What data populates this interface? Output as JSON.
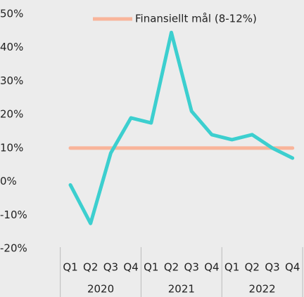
{
  "chart_data": {
    "type": "line",
    "categories": [
      "Q1",
      "Q2",
      "Q3",
      "Q4",
      "Q1",
      "Q2",
      "Q3",
      "Q4",
      "Q1",
      "Q2",
      "Q3",
      "Q4"
    ],
    "category_groups": [
      "2020",
      "2021",
      "2022"
    ],
    "series": [
      {
        "name": null,
        "color": "#3ccfcf",
        "values": [
          -1,
          -12.5,
          8.5,
          19,
          17.5,
          44.5,
          21,
          14,
          12.5,
          14,
          10,
          7
        ]
      },
      {
        "name": "Finansiellt mål (8-12%)",
        "color": "#f9b49a",
        "values": [
          10,
          10,
          10,
          10,
          10,
          10,
          10,
          10,
          10,
          10,
          10,
          10
        ]
      }
    ],
    "ylim": [
      -20,
      50
    ],
    "yticks": [
      {
        "value": -20,
        "label": "-20%"
      },
      {
        "value": -10,
        "label": "-10%"
      },
      {
        "value": 0,
        "label": "0%"
      },
      {
        "value": 10,
        "label": "10%"
      },
      {
        "value": 20,
        "label": "20%"
      },
      {
        "value": 30,
        "label": "30%"
      },
      {
        "value": 40,
        "label": "40%"
      },
      {
        "value": 50,
        "label": "50%"
      }
    ],
    "grid": false,
    "legend": "top"
  }
}
